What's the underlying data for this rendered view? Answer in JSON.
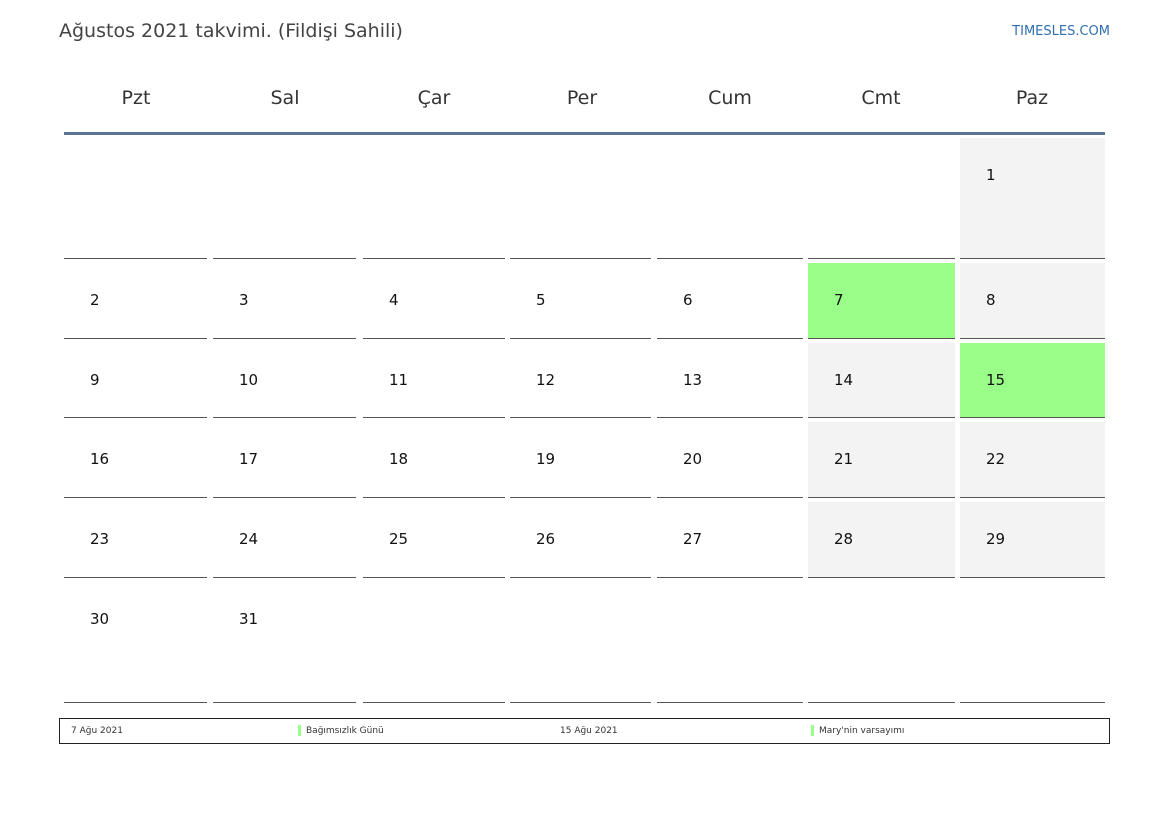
{
  "title": "Ağustos 2021 takvimi. (Fildişi Sahili)",
  "brand": "TIMESLES.COM",
  "colors": {
    "holiday": "#99ff88",
    "weekend": "#f3f3f3",
    "header_rule": "#5a7597",
    "brand": "#2f6fb0"
  },
  "weekdays": [
    "Pzt",
    "Sal",
    "Çar",
    "Per",
    "Cum",
    "Cmt",
    "Paz"
  ],
  "days": [
    "1",
    "2",
    "3",
    "4",
    "5",
    "6",
    "7",
    "8",
    "9",
    "10",
    "11",
    "12",
    "13",
    "14",
    "15",
    "16",
    "17",
    "18",
    "19",
    "20",
    "21",
    "22",
    "23",
    "24",
    "25",
    "26",
    "27",
    "28",
    "29",
    "30",
    "31"
  ],
  "holidays": [
    "7",
    "15"
  ],
  "legend": [
    {
      "date": "7 Ağu 2021",
      "name": "Bağımsızlık Günü"
    },
    {
      "date": "15 Ağu 2021",
      "name": "Mary'nin varsayımı"
    }
  ]
}
